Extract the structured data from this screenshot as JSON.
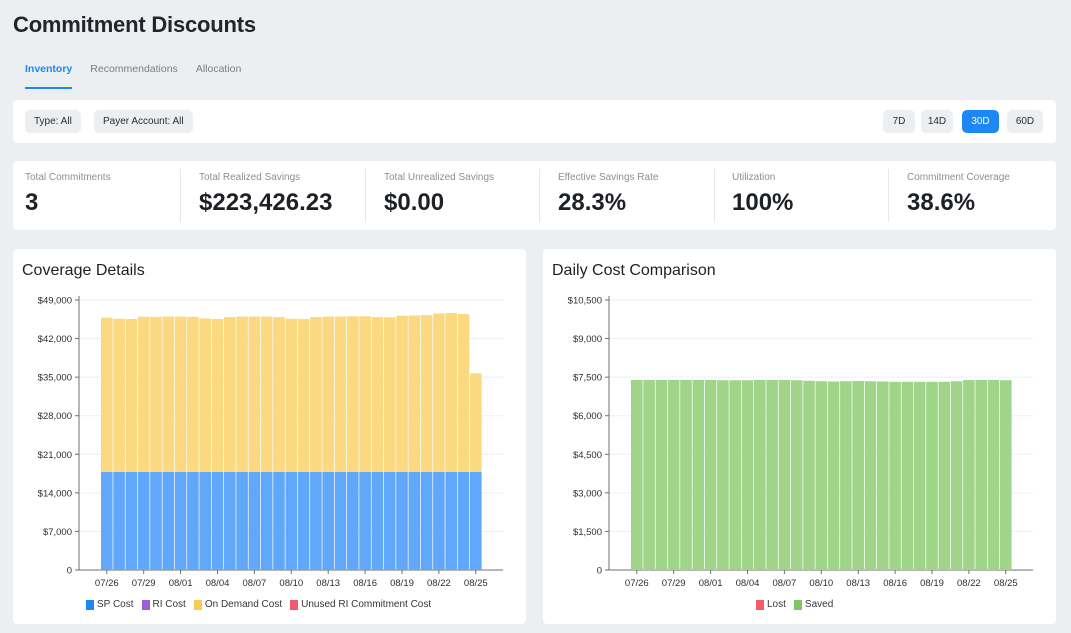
{
  "page": {
    "title": "Commitment Discounts",
    "tabs": [
      {
        "label": "Inventory",
        "active": true
      },
      {
        "label": "Recommendations",
        "active": false
      },
      {
        "label": "Allocation",
        "active": false
      }
    ]
  },
  "filters": {
    "type": "Type: All",
    "payer_account": "Payer Account: All",
    "ranges": [
      {
        "label": "7D",
        "active": false
      },
      {
        "label": "14D",
        "active": false
      },
      {
        "label": "30D",
        "active": true
      },
      {
        "label": "60D",
        "active": false
      }
    ]
  },
  "stats": [
    {
      "label": "Total Commitments",
      "value": "3"
    },
    {
      "label": "Total Realized Savings",
      "value": "$223,426.23"
    },
    {
      "label": "Total Unrealized Savings",
      "value": "$0.00"
    },
    {
      "label": "Effective Savings Rate",
      "value": "28.3%"
    },
    {
      "label": "Utilization",
      "value": "100%"
    },
    {
      "label": "Commitment Coverage",
      "value": "38.6%"
    }
  ],
  "colors": {
    "accent": "#1d87f5",
    "sp_cost": "#62a8fa",
    "ri_cost": "#9b5fd6",
    "on_demand": "#fbd981",
    "unused_ri": "#f25c6a",
    "lost": "#f25c6a",
    "saved": "#9fd489"
  },
  "chart_data": [
    {
      "type": "bar",
      "stacked": true,
      "title": "Coverage Details",
      "xlabel": "",
      "ylabel": "",
      "ylim": [
        0,
        49000
      ],
      "yticks": [
        "0",
        "$7,000",
        "$14,000",
        "$21,000",
        "$28,000",
        "$35,000",
        "$42,000",
        "$49,000"
      ],
      "ytick_values": [
        0,
        7000,
        14000,
        21000,
        28000,
        35000,
        42000,
        49000
      ],
      "xticks": [
        "07/26",
        "07/29",
        "08/01",
        "08/04",
        "08/07",
        "08/10",
        "08/13",
        "08/16",
        "08/19",
        "08/22",
        "08/25"
      ],
      "categories": [
        "07/26",
        "07/27",
        "07/28",
        "07/29",
        "07/30",
        "07/31",
        "08/01",
        "08/02",
        "08/03",
        "08/04",
        "08/05",
        "08/06",
        "08/07",
        "08/08",
        "08/09",
        "08/10",
        "08/11",
        "08/12",
        "08/13",
        "08/14",
        "08/15",
        "08/16",
        "08/17",
        "08/18",
        "08/19",
        "08/20",
        "08/21",
        "08/22",
        "08/23",
        "08/24",
        "08/25"
      ],
      "legend_position": "bottom",
      "grid": true,
      "series": [
        {
          "name": "SP Cost",
          "color_key": "sp_cost",
          "values": [
            17800,
            17800,
            17800,
            17800,
            17800,
            17800,
            17800,
            17800,
            17800,
            17800,
            17800,
            17800,
            17800,
            17800,
            17800,
            17800,
            17800,
            17800,
            17800,
            17800,
            17800,
            17800,
            17800,
            17800,
            17800,
            17800,
            17800,
            17800,
            17800,
            17800,
            17800
          ]
        },
        {
          "name": "RI Cost",
          "color_key": "ri_cost",
          "values": [
            0,
            0,
            0,
            0,
            0,
            0,
            0,
            0,
            0,
            0,
            0,
            0,
            0,
            0,
            0,
            0,
            0,
            0,
            0,
            0,
            0,
            0,
            0,
            0,
            0,
            0,
            0,
            0,
            0,
            0,
            0
          ]
        },
        {
          "name": "On Demand Cost",
          "color_key": "on_demand",
          "values": [
            28000,
            27800,
            27750,
            28150,
            28150,
            28200,
            28200,
            28150,
            27850,
            27750,
            28100,
            28200,
            28200,
            28200,
            28100,
            27800,
            27750,
            28100,
            28200,
            28200,
            28250,
            28250,
            28100,
            28050,
            28350,
            28400,
            28450,
            28750,
            28850,
            28650,
            17900
          ]
        },
        {
          "name": "Unused RI Commitment Cost",
          "color_key": "unused_ri",
          "values": [
            0,
            0,
            0,
            0,
            0,
            0,
            0,
            0,
            0,
            0,
            0,
            0,
            0,
            0,
            0,
            0,
            0,
            0,
            0,
            0,
            0,
            0,
            0,
            0,
            0,
            0,
            0,
            0,
            0,
            0,
            0
          ]
        }
      ]
    },
    {
      "type": "bar",
      "stacked": true,
      "title": "Daily Cost Comparison",
      "xlabel": "",
      "ylabel": "",
      "ylim": [
        0,
        10500
      ],
      "yticks": [
        "0",
        "$1,500",
        "$3,000",
        "$4,500",
        "$6,000",
        "$7,500",
        "$9,000",
        "$10,500"
      ],
      "ytick_values": [
        0,
        1500,
        3000,
        4500,
        6000,
        7500,
        9000,
        10500
      ],
      "xticks": [
        "07/26",
        "07/29",
        "08/01",
        "08/04",
        "08/07",
        "08/10",
        "08/13",
        "08/16",
        "08/19",
        "08/22",
        "08/25"
      ],
      "categories": [
        "07/26",
        "07/27",
        "07/28",
        "07/29",
        "07/30",
        "07/31",
        "08/01",
        "08/02",
        "08/03",
        "08/04",
        "08/05",
        "08/06",
        "08/07",
        "08/08",
        "08/09",
        "08/10",
        "08/11",
        "08/12",
        "08/13",
        "08/14",
        "08/15",
        "08/16",
        "08/17",
        "08/18",
        "08/19",
        "08/20",
        "08/21",
        "08/22",
        "08/23",
        "08/24",
        "08/25"
      ],
      "legend_position": "bottom",
      "grid": true,
      "series": [
        {
          "name": "Lost",
          "color_key": "lost",
          "values": [
            0,
            0,
            0,
            0,
            0,
            0,
            0,
            0,
            0,
            0,
            0,
            0,
            0,
            0,
            0,
            0,
            0,
            0,
            0,
            0,
            0,
            0,
            0,
            0,
            0,
            0,
            0,
            0,
            0,
            0,
            0
          ]
        },
        {
          "name": "Saved",
          "color_key": "saved",
          "values": [
            7390,
            7390,
            7390,
            7390,
            7390,
            7390,
            7390,
            7380,
            7380,
            7380,
            7390,
            7390,
            7390,
            7380,
            7360,
            7340,
            7330,
            7340,
            7350,
            7340,
            7330,
            7320,
            7320,
            7320,
            7320,
            7320,
            7340,
            7390,
            7390,
            7390,
            7380
          ]
        }
      ]
    }
  ]
}
